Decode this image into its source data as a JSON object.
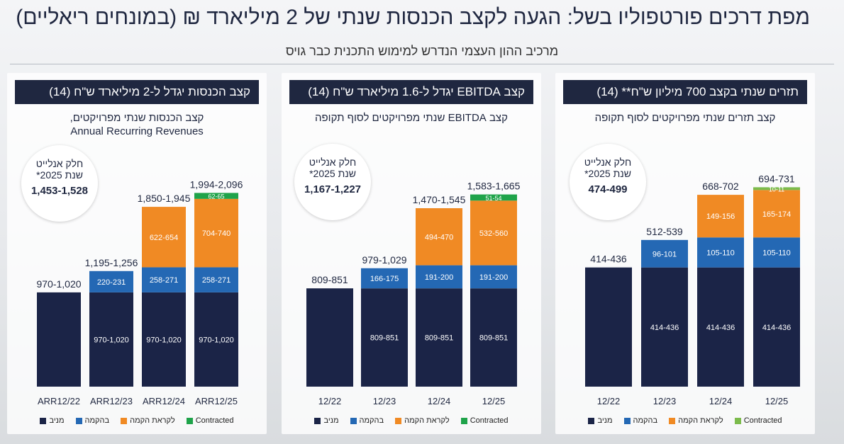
{
  "header": {
    "title": "מפת דרכים פורטפוליו בשל: הגעה לקצב הכנסות שנתי של 2 מיליארד ₪  (במונחים ריאליים)",
    "subtitle": "מרכיב ההון העצמי הנדרש למימוש התכנית כבר גויס"
  },
  "colors": {
    "operating": "#1b2447",
    "construction": "#2468b4",
    "ready": "#f08a24",
    "contracted_green": "#1fa34a",
    "contracted_light_green": "#7cbb4c"
  },
  "legend": {
    "operating": "מניב",
    "construction": "בהקמה",
    "ready": "לקראת הקמה",
    "contracted": "Contracted"
  },
  "panels": [
    {
      "header": "קצב הכנסות יגדל ל-2 מיליארד ש\"ח (14)",
      "subtitle_he": "קצב הכנסות שנתי מפרויקטים,",
      "subtitle_en": "Annual Recurring Revenues",
      "circle": {
        "line1": "חלק אנלייט",
        "line2": "שנת 2025*",
        "value": "1,453-1,528"
      }
    },
    {
      "header": "קצב  EBITDA יגדל ל-1.6 מיליארד ש\"ח (14)",
      "subtitle_he": "קצב EBITDA שנתי מפרויקטים לסוף תקופה",
      "subtitle_en": "",
      "circle": {
        "line1": "חלק אנלייט",
        "line2": "שנת 2025*",
        "value": "1,167-1,227"
      }
    },
    {
      "header": "תזרים שנתי בקצב 700 מיליון ש\"ח** (14)",
      "subtitle_he": "קצב תזרים שנתי מפרויקטים לסוף תקופה",
      "subtitle_en": "",
      "circle": {
        "line1": "חלק אנלייט",
        "line2": "שנת 2025*",
        "value": "474-499"
      }
    }
  ],
  "chart_data": [
    {
      "type": "bar",
      "stacked": true,
      "title": "קצב הכנסות יגדל ל-2 מיליארד ש\"ח (14)",
      "categories": [
        "ARR12/22",
        "ARR12/23",
        "ARR12/24",
        "ARR12/25"
      ],
      "totals": [
        "970-1,020",
        "1,195-1,256",
        "1,850-1,945",
        "1,994-2,096"
      ],
      "ylim": [
        0,
        2250
      ],
      "series": [
        {
          "name": "מניב",
          "color": "#1b2447",
          "values": [
            995,
            995,
            995,
            995
          ],
          "labels": [
            "",
            "970-1,020",
            "970-1,020",
            "970-1,020"
          ]
        },
        {
          "name": "בהקמה",
          "color": "#2468b4",
          "values": [
            0,
            225,
            265,
            265
          ],
          "labels": [
            "",
            "220-231",
            "258-271",
            "258-271"
          ]
        },
        {
          "name": "לקראת הקמה",
          "color": "#f08a24",
          "values": [
            0,
            0,
            638,
            722
          ],
          "labels": [
            "",
            "",
            "622-654",
            "704-740"
          ]
        },
        {
          "name": "Contracted",
          "color": "#1fa34a",
          "values": [
            0,
            0,
            0,
            63
          ],
          "labels": [
            "",
            "",
            "",
            "62-65"
          ]
        }
      ]
    },
    {
      "type": "bar",
      "stacked": true,
      "title": "קצב  EBITDA יגדל ל-1.6 מיליארד ש\"ח (14)",
      "categories": [
        "12/22",
        "12/23",
        "12/24",
        "12/25"
      ],
      "totals": [
        "809-851",
        "979-1,029",
        "1,470-1,545",
        "1,583-1,665"
      ],
      "ylim": [
        0,
        1800
      ],
      "series": [
        {
          "name": "מניב",
          "color": "#1b2447",
          "values": [
            830,
            830,
            830,
            830
          ],
          "labels": [
            "",
            "809-851",
            "809-851",
            "809-851"
          ]
        },
        {
          "name": "בהקמה",
          "color": "#2468b4",
          "values": [
            0,
            170,
            195,
            195
          ],
          "labels": [
            "",
            "166-175",
            "191-200",
            "191-200"
          ]
        },
        {
          "name": "לקראת הקמה",
          "color": "#f08a24",
          "values": [
            0,
            0,
            482,
            546
          ],
          "labels": [
            "",
            "",
            "494-470",
            "532-560"
          ]
        },
        {
          "name": "Contracted",
          "color": "#1fa34a",
          "values": [
            0,
            0,
            0,
            52
          ],
          "labels": [
            "",
            "",
            "",
            "51-54"
          ]
        }
      ]
    },
    {
      "type": "bar",
      "stacked": true,
      "title": "תזרים שנתי בקצב 700 מיליון ש\"ח** (14)",
      "categories": [
        "12/22",
        "12/23",
        "12/24",
        "12/25"
      ],
      "totals": [
        "414-436",
        "512-539",
        "668-702",
        "694-731"
      ],
      "ylim": [
        0,
        760
      ],
      "series": [
        {
          "name": "מניב",
          "color": "#1b2447",
          "values": [
            425,
            425,
            425,
            425
          ],
          "labels": [
            "",
            "414-436",
            "414-436",
            "414-436"
          ]
        },
        {
          "name": "בהקמה",
          "color": "#2468b4",
          "values": [
            0,
            98,
            107,
            107
          ],
          "labels": [
            "",
            "96-101",
            "105-110",
            "105-110"
          ]
        },
        {
          "name": "לקראת הקמה",
          "color": "#f08a24",
          "values": [
            0,
            0,
            152,
            169
          ],
          "labels": [
            "",
            "",
            "149-156",
            "165-174"
          ]
        },
        {
          "name": "Contracted",
          "color": "#7cbb4c",
          "values": [
            0,
            0,
            0,
            10
          ],
          "labels": [
            "",
            "",
            "",
            "10-11"
          ]
        }
      ]
    }
  ]
}
